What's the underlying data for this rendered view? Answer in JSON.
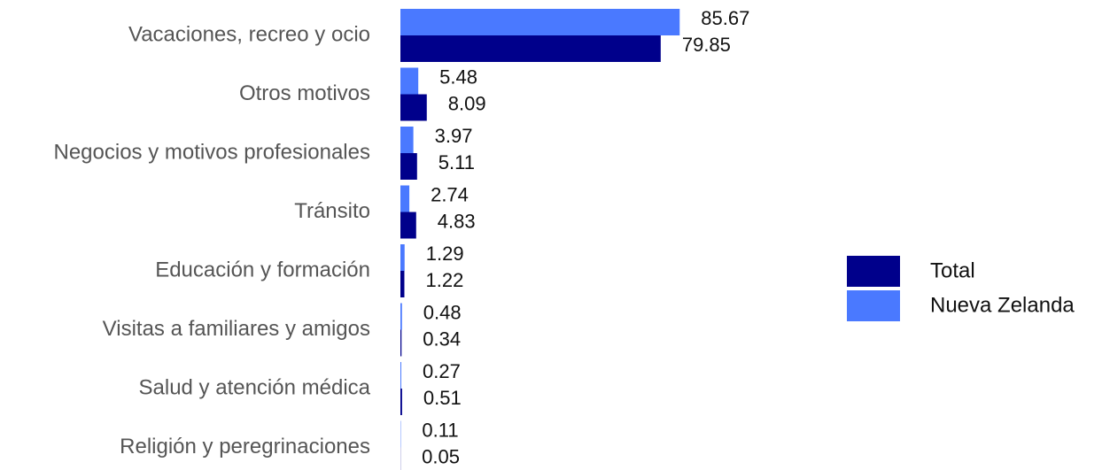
{
  "chart_data": {
    "type": "bar",
    "orientation": "horizontal",
    "categories": [
      "Vacaciones, recreo y ocio",
      "Otros motivos",
      "Negocios y motivos profesionales",
      "Tránsito",
      "Educación y formación",
      "Visitas a familiares y amigos",
      "Salud y atención médica",
      "Religión y peregrinaciones"
    ],
    "series": [
      {
        "name": "Total",
        "color": "#00008b",
        "values": [
          79.85,
          8.09,
          5.11,
          4.83,
          1.22,
          0.34,
          0.51,
          0.05
        ]
      },
      {
        "name": "Nueva Zelanda",
        "color": "#4a79ff",
        "values": [
          85.67,
          5.48,
          3.97,
          2.74,
          1.29,
          0.48,
          0.27,
          0.11
        ]
      }
    ],
    "legend": "right"
  }
}
